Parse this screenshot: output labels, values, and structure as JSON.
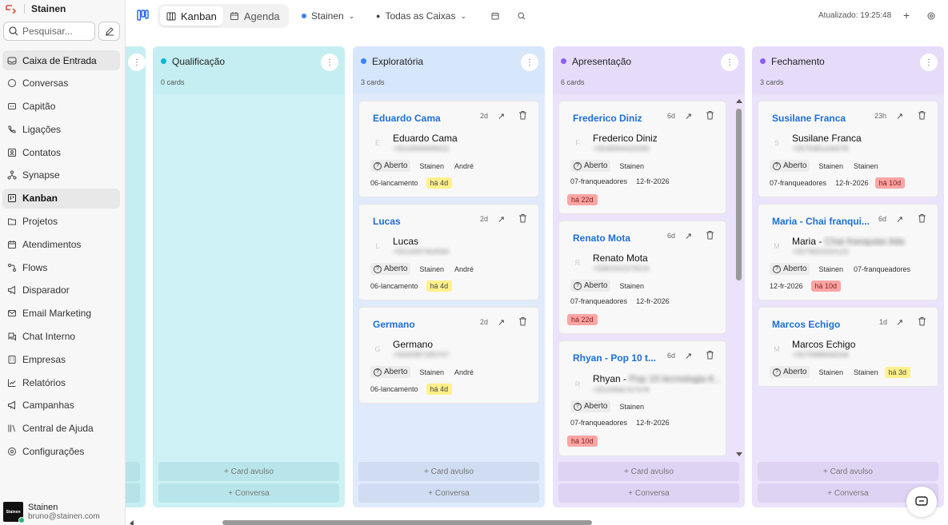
{
  "sidebar": {
    "brand": "Stainen",
    "search_placeholder": "Pesquisar...",
    "items": [
      {
        "label": "Caixa de Entrada",
        "icon": "inbox-icon"
      },
      {
        "label": "Conversas",
        "icon": "chat-bubble-icon"
      },
      {
        "label": "Capitão",
        "icon": "bot-icon"
      },
      {
        "label": "Ligações",
        "icon": "phone-icon"
      },
      {
        "label": "Contatos",
        "icon": "contact-card-icon"
      },
      {
        "label": "Synapse",
        "icon": "network-icon"
      },
      {
        "label": "Kanban",
        "icon": "kanban-icon"
      },
      {
        "label": "Projetos",
        "icon": "folder-icon"
      },
      {
        "label": "Atendimentos",
        "icon": "calendar-icon"
      },
      {
        "label": "Flows",
        "icon": "flow-icon"
      },
      {
        "label": "Disparador",
        "icon": "megaphone-icon"
      },
      {
        "label": "Email Marketing",
        "icon": "mail-icon"
      },
      {
        "label": "Chat Interno",
        "icon": "chat-icon"
      },
      {
        "label": "Empresas",
        "icon": "building-icon"
      },
      {
        "label": "Relatórios",
        "icon": "chart-icon"
      },
      {
        "label": "Campanhas",
        "icon": "megaphone-icon"
      },
      {
        "label": "Central de Ajuda",
        "icon": "books-icon"
      },
      {
        "label": "Configurações",
        "icon": "gear-icon"
      }
    ],
    "user": {
      "name": "Stainen",
      "email": "bruno@stainen.com",
      "avatar_text": "Stainen"
    }
  },
  "topbar": {
    "view_tabs": [
      "Kanban",
      "Agenda"
    ],
    "account": "Stainen",
    "inbox_filter": "Todas as Caixas",
    "updated": "Atualizado: 19:25:48"
  },
  "board": {
    "add_card_label": "+ Card avulso",
    "add_conversation_label": "+ Conversa",
    "columns": [
      {
        "title": "Qualificação",
        "count": "0 cards",
        "color": "#06b6d4",
        "cards": []
      },
      {
        "title": "Exploratória",
        "count": "3 cards",
        "color": "#3b82f6",
        "cards": [
          {
            "title": "Eduardo Cama",
            "age": "2d",
            "avatar": "E",
            "contact": "Eduardo Cama",
            "contact_extra": "",
            "phone": "+5519999999922",
            "status": "Aberto",
            "agents": [
              "Stainen",
              "André"
            ],
            "tag": "06-lancamento",
            "date": "",
            "badge": "há 4d",
            "badge_color": "yellow"
          },
          {
            "title": "Lucas",
            "age": "2d",
            "avatar": "L",
            "contact": "Lucas",
            "contact_extra": "",
            "phone": "+5514997464584",
            "status": "Aberto",
            "agents": [
              "Stainen",
              "André"
            ],
            "tag": "06-lancamento",
            "date": "",
            "badge": "há 4d",
            "badge_color": "yellow"
          },
          {
            "title": "Germano",
            "age": "2d",
            "avatar": "G",
            "contact": "Germano",
            "contact_extra": "",
            "phone": "+5565987395707",
            "status": "Aberto",
            "agents": [
              "Stainen",
              "André"
            ],
            "tag": "06-lancamento",
            "date": "",
            "badge": "há 4d",
            "badge_color": "yellow"
          }
        ]
      },
      {
        "title": "Apresentação",
        "count": "6 cards",
        "color": "#8b5cf6",
        "cards": [
          {
            "title": "Frederico Diniz",
            "age": "6d",
            "avatar": "F",
            "contact": "Frederico Diniz",
            "contact_extra": "",
            "phone": "+5548994420099",
            "status": "Aberto",
            "agents": [
              "Stainen"
            ],
            "tag": "07-franqueadores",
            "date": "12-fr-2026",
            "badge": "há 22d",
            "badge_color": "red"
          },
          {
            "title": "Renato Mota",
            "age": "6d",
            "avatar": "R",
            "contact": "Renato Mota",
            "contact_extra": "",
            "phone": "+5581922375519",
            "status": "Aberto",
            "agents": [
              "Stainen"
            ],
            "tag": "07-franqueadores",
            "date": "12-fr-2026",
            "badge": "há 22d",
            "badge_color": "red"
          },
          {
            "title": "Rhyan - Pop 10 t...",
            "age": "6d",
            "avatar": "R",
            "contact": "Rhyan - ",
            "contact_extra": "Pop 10 tecnologia lt...",
            "phone": "+5519996767978",
            "status": "Aberto",
            "agents": [
              "Stainen"
            ],
            "tag": "07-franqueadores",
            "date": "12-fr-2026",
            "badge": "há 10d",
            "badge_color": "red"
          }
        ]
      },
      {
        "title": "Fechamento",
        "count": "3 cards",
        "color": "#8b5cf6",
        "cards": [
          {
            "title": "Susilane Franca",
            "age": "23h",
            "avatar": "S",
            "contact": "Susilane Franca",
            "contact_extra": "",
            "phone": "+5575981436978",
            "status": "Aberto",
            "agents": [
              "Stainen",
              "Stainen"
            ],
            "tag": "07-franqueadores",
            "date": "12-fr-2026",
            "badge": "há 10d",
            "badge_color": "red"
          },
          {
            "title": "Maria - Chai franqui...",
            "age": "6d",
            "avatar": "M",
            "contact": "Maria - ",
            "contact_extra": "Chai franquias ltda",
            "phone": "+5579823320123",
            "status": "Aberto",
            "agents": [
              "Stainen",
              "07-franqueadores"
            ],
            "tag": "12-fr-2026",
            "date": "",
            "badge": "há 10d",
            "badge_color": "red"
          },
          {
            "title": "Marcos Echigo",
            "age": "1d",
            "avatar": "M",
            "contact": "Marcos Echigo",
            "contact_extra": "",
            "phone": "+5579988668268",
            "status": "Aberto",
            "agents": [
              "Stainen",
              "Stainen"
            ],
            "tag": "",
            "date": "",
            "badge": "há 3d",
            "badge_color": "yellow"
          }
        ]
      }
    ]
  },
  "colors": {
    "accent": "#2563eb",
    "qualificacao_bg": "#c5eef2",
    "exploratoria_bg": "#d6e6fb",
    "apresentacao_bg": "#e6dcfa",
    "fechamento_bg": "#e6dcfa"
  }
}
